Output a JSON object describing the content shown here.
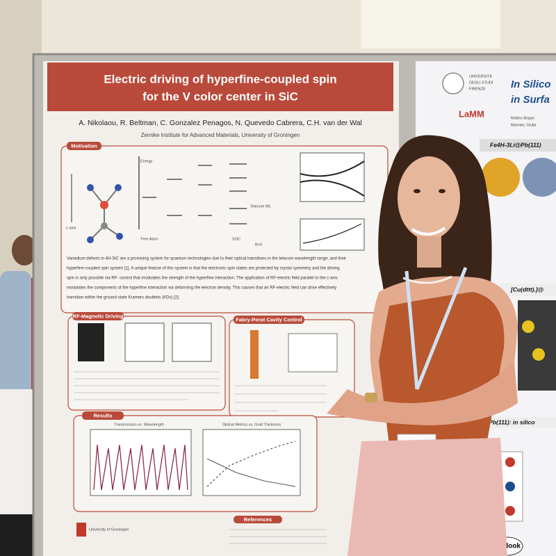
{
  "left_poster": {
    "title": [
      "Electric driving of hyperfine-coupled spin",
      "for the V color center in SiC"
    ],
    "authors": "A. Nikolaou, R. Beltman, C. Gonzalez Penagos, N. Quevedo Cabrera, C.H. van der Wal",
    "affiliation": "Zernike Institute for Advanced Materials, University of Groningen",
    "sections": [
      "Motivation",
      "RF-Magnetic Driving",
      "Fabry-Perot Cavity Control",
      "Results",
      "References"
    ],
    "motivation_text": [
      "Vanadium defects in 4H-SiC are a promising system for quantum technologies due to their optical transitions in the telecom wavelength range, and their",
      "hyperfine-coupled spin system [1]. A unique feature of this system is that the electronic spin states are protected by crystal symmetry and the driving",
      "spin is only possible via RF- control that modulates the strength of the hyperfine interaction. The application of RF-electric field parallel to the c-axis",
      "modulates the components of the hyperfine interaction via deforming the electron density. This causes that an RF-electric field can drive effectively",
      "transition within the ground-state Kramers doublets (KDs) [2]."
    ],
    "plot_titles": [
      "Transmission vs. Wavelength",
      "Optical Metrics vs. Gold Thickness"
    ],
    "diagram_labels": [
      "Energy",
      "Free Atom",
      "c-axis",
      "SOC",
      "B>0",
      "Telecom WL"
    ],
    "footer": "University of Groningen"
  },
  "right_poster": {
    "university": [
      "UNIVERSITÀ",
      "DEGLI STUDI",
      "FIRENZE"
    ],
    "lab": "LaMM",
    "title": [
      "In Silico",
      "in Surfa"
    ],
    "authors": [
      "Matteo Brigan",
      "Mannini, Giulia"
    ],
    "panels": [
      "Fe4H-3Li@Pb(111)",
      "[Cu(dttt).]@",
      "@Pb(111): in silico",
      "Outlook"
    ]
  }
}
